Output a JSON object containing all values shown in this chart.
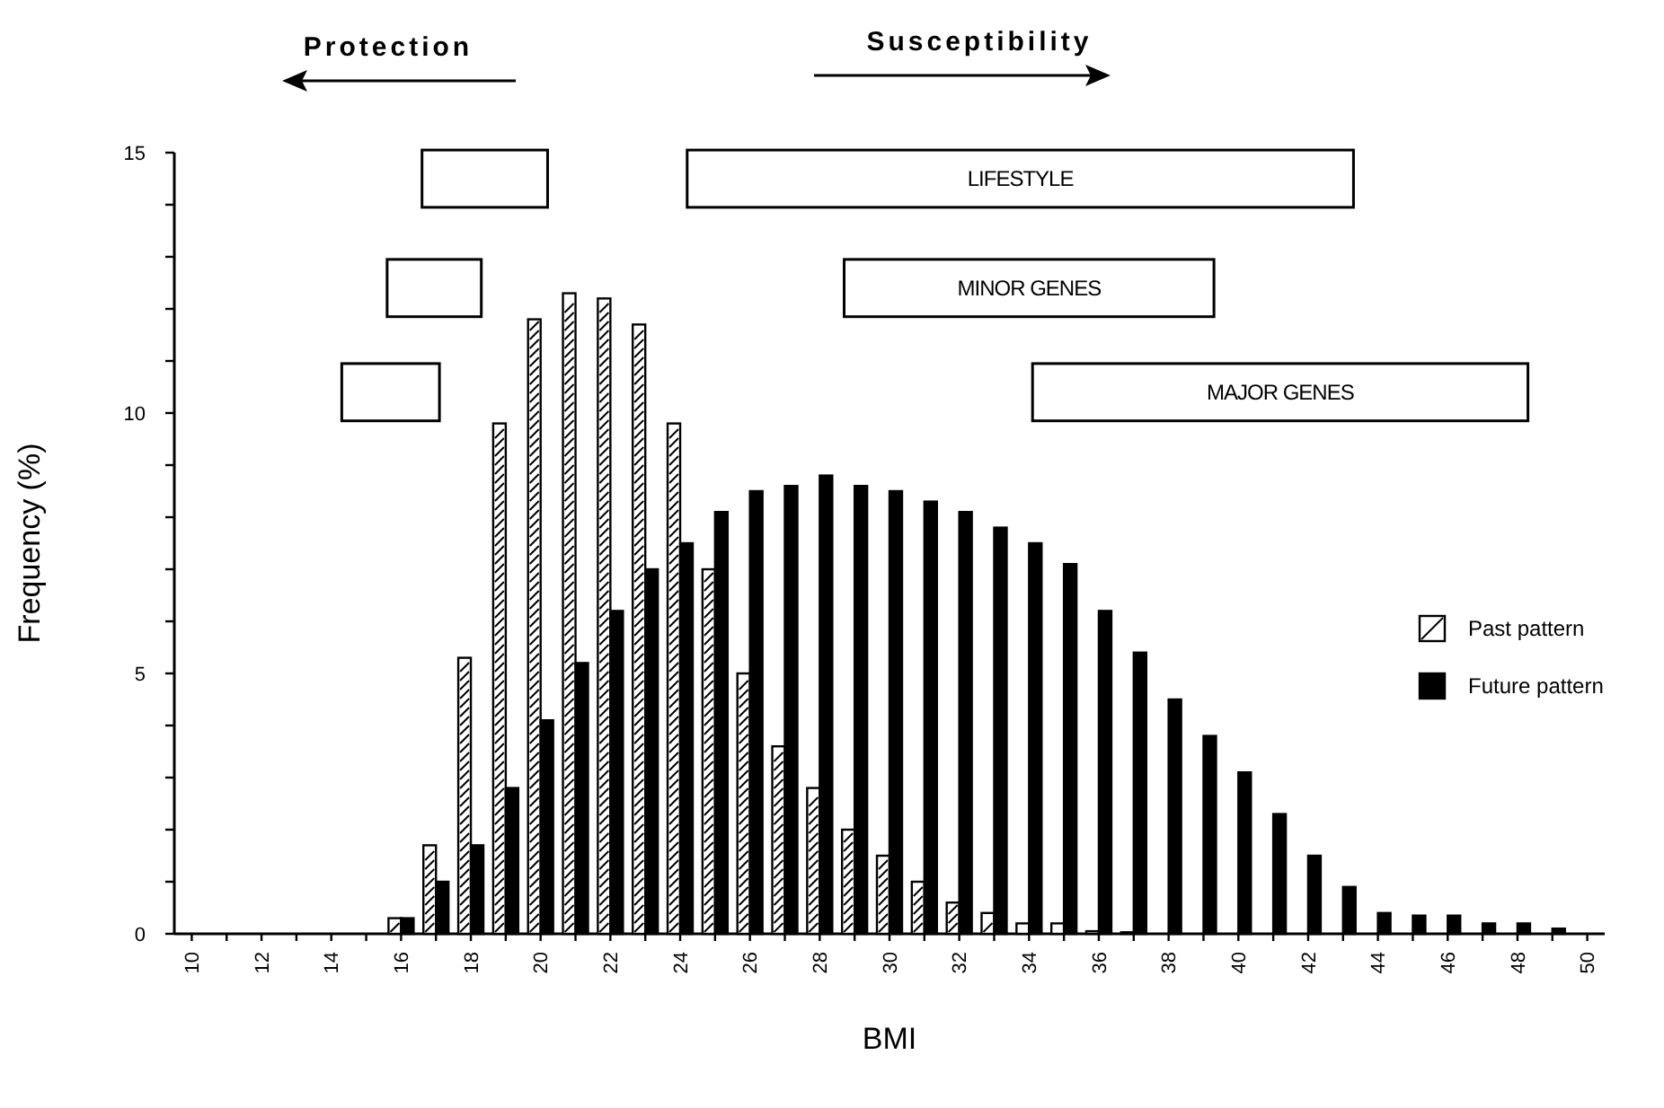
{
  "chart_data": {
    "type": "bar",
    "xlabel": "BMI",
    "ylabel": "Frequency (%)",
    "categories": [
      "10",
      null,
      "12",
      null,
      "14",
      null,
      "16",
      null,
      "18",
      null,
      "20",
      null,
      "22",
      null,
      "24",
      null,
      "26",
      null,
      "28",
      null,
      "30",
      null,
      "32",
      null,
      "34",
      null,
      "36",
      null,
      "38",
      null,
      "40",
      null,
      "42",
      null,
      "44",
      null,
      "46",
      null,
      "48",
      null,
      "50"
    ],
    "series": [
      {
        "name": "Past pattern",
        "color": "#ffffff",
        "values": [
          0,
          0,
          0,
          0,
          0,
          0,
          0.3,
          1.7,
          5.3,
          9.8,
          11.8,
          12.3,
          12.2,
          11.7,
          9.8,
          7.0,
          5.0,
          3.6,
          2.8,
          2.0,
          1.5,
          1.0,
          0.6,
          0.4,
          0.2,
          0.2,
          0.05,
          0.03,
          0,
          0,
          0,
          0,
          0,
          0,
          0,
          0,
          0,
          0,
          0,
          0,
          0
        ]
      },
      {
        "name": "Future pattern",
        "color": "#000000",
        "values": [
          0,
          0,
          0,
          0,
          0,
          0,
          0.3,
          1.0,
          1.7,
          2.8,
          4.1,
          5.2,
          6.2,
          7.0,
          7.5,
          8.1,
          8.5,
          8.6,
          8.8,
          8.6,
          8.5,
          8.3,
          8.1,
          7.8,
          7.5,
          7.1,
          6.2,
          5.4,
          4.5,
          3.8,
          3.1,
          2.3,
          1.5,
          0.9,
          0.4,
          0.35,
          0.35,
          0.2,
          0.2,
          0.1,
          0
        ]
      }
    ],
    "ylim": [
      0,
      15
    ],
    "yticks": [
      0,
      {
        "value": 1,
        "label": null
      },
      {
        "value": 2,
        "label": null
      },
      {
        "value": 3,
        "label": null
      },
      {
        "value": 4,
        "label": null
      },
      5,
      {
        "value": 6,
        "label": null
      },
      {
        "value": 7,
        "label": null
      },
      {
        "value": 8,
        "label": null
      },
      {
        "value": 9,
        "label": null
      },
      10,
      {
        "value": 11,
        "label": null
      },
      {
        "value": 12,
        "label": null
      },
      {
        "value": 13,
        "label": null
      },
      {
        "value": 14,
        "label": null
      },
      15
    ],
    "annotations": [
      "Protection",
      "Susceptibility",
      "LIFESTYLE",
      "MINOR GENES",
      "MAJOR GENES"
    ],
    "legend": "right",
    "grid": false
  }
}
